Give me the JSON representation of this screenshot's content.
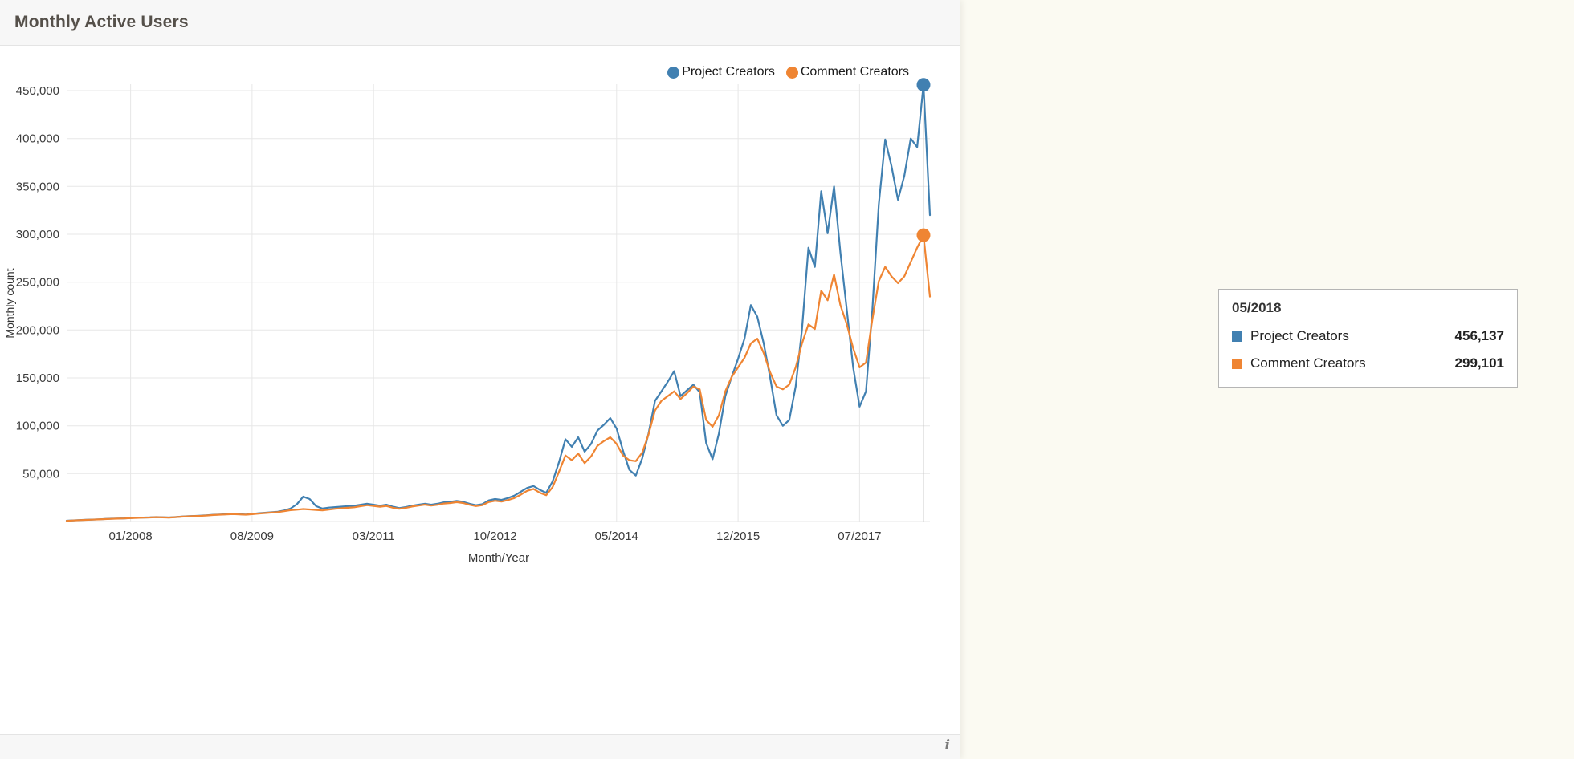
{
  "header": {
    "title": "Monthly Active Users"
  },
  "footer": {
    "info_icon": "i"
  },
  "colors": {
    "project": "#4180b1",
    "comment": "#ef8533",
    "grid": "#e7e7e7",
    "crosshair": "#cccccc",
    "axis_text": "#3c3c3c"
  },
  "legend": [
    {
      "label": "Project Creators",
      "color": "#4180b1"
    },
    {
      "label": "Comment Creators",
      "color": "#ef8533"
    }
  ],
  "tooltip": {
    "title": "05/2018",
    "rows": [
      {
        "label": "Project Creators",
        "value": "456,137",
        "color": "#4180b1"
      },
      {
        "label": "Comment Creators",
        "value": "299,101",
        "color": "#ef8533"
      }
    ]
  },
  "chart_data": {
    "type": "line",
    "title": "Monthly Active Users",
    "xlabel": "Month/Year",
    "ylabel": "Monthly count",
    "grid": true,
    "legend_position": "top-right",
    "ylim": [
      0,
      460000
    ],
    "y_ticks": [
      50000,
      100000,
      150000,
      200000,
      250000,
      300000,
      350000,
      400000,
      450000
    ],
    "y_tick_labels": [
      "50,000",
      "100,000",
      "150,000",
      "200,000",
      "250,000",
      "300,000",
      "350,000",
      "400,000",
      "450,000"
    ],
    "x_ticks": [
      "01/2008",
      "08/2009",
      "03/2011",
      "10/2012",
      "05/2014",
      "12/2015",
      "07/2017"
    ],
    "highlight": {
      "x": "05/2018",
      "values": [
        456137,
        299101
      ]
    },
    "x": [
      "03/2007",
      "04/2007",
      "05/2007",
      "06/2007",
      "07/2007",
      "08/2007",
      "09/2007",
      "10/2007",
      "11/2007",
      "12/2007",
      "01/2008",
      "02/2008",
      "03/2008",
      "04/2008",
      "05/2008",
      "06/2008",
      "07/2008",
      "08/2008",
      "09/2008",
      "10/2008",
      "11/2008",
      "12/2008",
      "01/2009",
      "02/2009",
      "03/2009",
      "04/2009",
      "05/2009",
      "06/2009",
      "07/2009",
      "08/2009",
      "09/2009",
      "10/2009",
      "11/2009",
      "12/2009",
      "01/2010",
      "02/2010",
      "03/2010",
      "04/2010",
      "05/2010",
      "06/2010",
      "07/2010",
      "08/2010",
      "09/2010",
      "10/2010",
      "11/2010",
      "12/2010",
      "01/2011",
      "02/2011",
      "03/2011",
      "04/2011",
      "05/2011",
      "06/2011",
      "07/2011",
      "08/2011",
      "09/2011",
      "10/2011",
      "11/2011",
      "12/2011",
      "01/2012",
      "02/2012",
      "03/2012",
      "04/2012",
      "05/2012",
      "06/2012",
      "07/2012",
      "08/2012",
      "09/2012",
      "10/2012",
      "11/2012",
      "12/2012",
      "01/2013",
      "02/2013",
      "03/2013",
      "04/2013",
      "05/2013",
      "06/2013",
      "07/2013",
      "08/2013",
      "09/2013",
      "10/2013",
      "11/2013",
      "12/2013",
      "01/2014",
      "02/2014",
      "03/2014",
      "04/2014",
      "05/2014",
      "06/2014",
      "07/2014",
      "08/2014",
      "09/2014",
      "10/2014",
      "11/2014",
      "12/2014",
      "01/2015",
      "02/2015",
      "03/2015",
      "04/2015",
      "05/2015",
      "06/2015",
      "07/2015",
      "08/2015",
      "09/2015",
      "10/2015",
      "11/2015",
      "12/2015",
      "01/2016",
      "02/2016",
      "03/2016",
      "04/2016",
      "05/2016",
      "06/2016",
      "07/2016",
      "08/2016",
      "09/2016",
      "10/2016",
      "11/2016",
      "12/2016",
      "01/2017",
      "02/2017",
      "03/2017",
      "04/2017",
      "05/2017",
      "06/2017",
      "07/2017",
      "08/2017",
      "09/2017",
      "10/2017",
      "11/2017",
      "12/2017",
      "01/2018",
      "02/2018",
      "03/2018",
      "04/2018",
      "05/2018",
      "06/2018"
    ],
    "series": [
      {
        "name": "Project Creators",
        "color": "#4180b1",
        "values": [
          800,
          1200,
          1500,
          1800,
          2000,
          2300,
          2600,
          2900,
          3100,
          3300,
          3600,
          3900,
          4100,
          4300,
          4600,
          4400,
          4200,
          4600,
          5100,
          5500,
          5800,
          6100,
          6500,
          7000,
          7300,
          7600,
          7900,
          7600,
          7300,
          7900,
          8600,
          9100,
          9600,
          10200,
          11500,
          13500,
          18000,
          26000,
          23500,
          16000,
          13500,
          14500,
          15000,
          15500,
          16000,
          16500,
          17500,
          18500,
          17500,
          16500,
          17500,
          15500,
          14000,
          15000,
          16500,
          17500,
          18500,
          17500,
          18500,
          20000,
          20500,
          21500,
          20500,
          18500,
          17000,
          18000,
          22000,
          23500,
          22500,
          24500,
          27000,
          31000,
          35000,
          37000,
          33000,
          30000,
          42000,
          62000,
          86000,
          78000,
          88000,
          73000,
          81000,
          95000,
          101000,
          108000,
          97000,
          74000,
          54000,
          48000,
          66000,
          92000,
          126000,
          136000,
          146000,
          157000,
          131000,
          137000,
          143000,
          135000,
          82000,
          65000,
          92000,
          131000,
          151000,
          170000,
          191000,
          226000,
          214000,
          186000,
          151000,
          111000,
          100000,
          106000,
          141000,
          201000,
          286000,
          266000,
          345000,
          301000,
          350000,
          281000,
          221000,
          161000,
          120000,
          136000,
          221000,
          331000,
          399000,
          371000,
          336000,
          361000,
          400000,
          391000,
          456137,
          320000
        ]
      },
      {
        "name": "Comment Creators",
        "color": "#ef8533",
        "values": [
          700,
          1100,
          1400,
          1700,
          1900,
          2200,
          2500,
          2800,
          3000,
          3200,
          3500,
          3800,
          4000,
          4200,
          4500,
          4300,
          4100,
          4500,
          5000,
          5400,
          5700,
          5900,
          6300,
          6800,
          7100,
          7400,
          7700,
          7400,
          7100,
          7600,
          8300,
          8800,
          9300,
          9800,
          10800,
          11800,
          12300,
          13000,
          12600,
          12000,
          11600,
          12400,
          13200,
          13800,
          14300,
          14800,
          16000,
          17000,
          16200,
          15400,
          16200,
          14400,
          13200,
          14200,
          15600,
          16600,
          17600,
          16600,
          17400,
          18800,
          19300,
          20200,
          19300,
          17400,
          16100,
          17100,
          20300,
          21600,
          20800,
          22400,
          24500,
          28000,
          32000,
          34000,
          30000,
          27500,
          36000,
          52000,
          69000,
          64000,
          71000,
          61000,
          68000,
          79000,
          84000,
          88000,
          81000,
          69000,
          64000,
          63000,
          72000,
          91000,
          116000,
          126000,
          131000,
          136000,
          128000,
          134000,
          141000,
          138000,
          106000,
          99000,
          111000,
          136000,
          151000,
          161000,
          171000,
          186000,
          191000,
          176000,
          156000,
          141000,
          138000,
          143000,
          161000,
          186000,
          206000,
          201000,
          241000,
          231000,
          258000,
          226000,
          206000,
          181000,
          161000,
          166000,
          211000,
          251000,
          266000,
          256000,
          249000,
          256000,
          271000,
          286000,
          299101,
          235000
        ]
      }
    ]
  }
}
